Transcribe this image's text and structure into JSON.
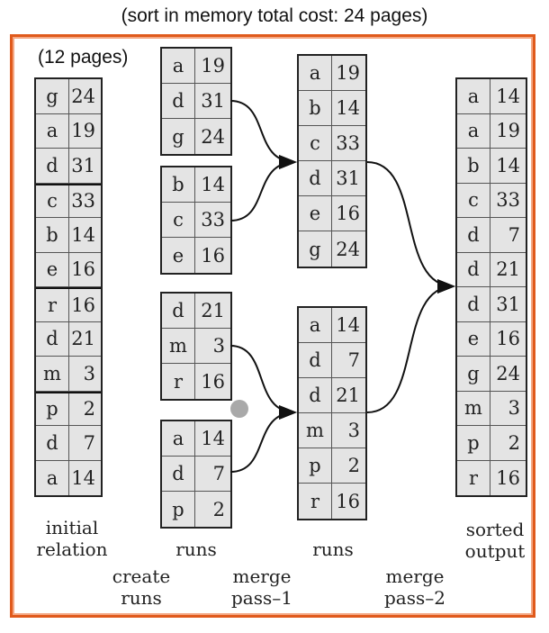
{
  "caption": "(sort in memory total cost: 24 pages)",
  "pages_note": "(12 pages)",
  "relation": [
    {
      "k": "g",
      "v": "24"
    },
    {
      "k": "a",
      "v": "19"
    },
    {
      "k": "d",
      "v": "31"
    },
    {
      "k": "c",
      "v": "33"
    },
    {
      "k": "b",
      "v": "14"
    },
    {
      "k": "e",
      "v": "16"
    },
    {
      "k": "r",
      "v": "16"
    },
    {
      "k": "d",
      "v": "21"
    },
    {
      "k": "m",
      "v": "3"
    },
    {
      "k": "p",
      "v": "2"
    },
    {
      "k": "d",
      "v": "7"
    },
    {
      "k": "a",
      "v": "14"
    }
  ],
  "runs1": [
    [
      {
        "k": "a",
        "v": "19"
      },
      {
        "k": "d",
        "v": "31"
      },
      {
        "k": "g",
        "v": "24"
      }
    ],
    [
      {
        "k": "b",
        "v": "14"
      },
      {
        "k": "c",
        "v": "33"
      },
      {
        "k": "e",
        "v": "16"
      }
    ],
    [
      {
        "k": "d",
        "v": "21"
      },
      {
        "k": "m",
        "v": "3"
      },
      {
        "k": "r",
        "v": "16"
      }
    ],
    [
      {
        "k": "a",
        "v": "14"
      },
      {
        "k": "d",
        "v": "7"
      },
      {
        "k": "p",
        "v": "2"
      }
    ]
  ],
  "runs2": [
    [
      {
        "k": "a",
        "v": "19"
      },
      {
        "k": "b",
        "v": "14"
      },
      {
        "k": "c",
        "v": "33"
      },
      {
        "k": "d",
        "v": "31"
      },
      {
        "k": "e",
        "v": "16"
      },
      {
        "k": "g",
        "v": "24"
      }
    ],
    [
      {
        "k": "a",
        "v": "14"
      },
      {
        "k": "d",
        "v": "7"
      },
      {
        "k": "d",
        "v": "21"
      },
      {
        "k": "m",
        "v": "3"
      },
      {
        "k": "p",
        "v": "2"
      },
      {
        "k": "r",
        "v": "16"
      }
    ]
  ],
  "output": [
    {
      "k": "a",
      "v": "14"
    },
    {
      "k": "a",
      "v": "19"
    },
    {
      "k": "b",
      "v": "14"
    },
    {
      "k": "c",
      "v": "33"
    },
    {
      "k": "d",
      "v": "7"
    },
    {
      "k": "d",
      "v": "21"
    },
    {
      "k": "d",
      "v": "31"
    },
    {
      "k": "e",
      "v": "16"
    },
    {
      "k": "g",
      "v": "24"
    },
    {
      "k": "m",
      "v": "3"
    },
    {
      "k": "p",
      "v": "2"
    },
    {
      "k": "r",
      "v": "16"
    }
  ],
  "labels": {
    "initial_relation": "initial\nrelation",
    "runs_1": "runs",
    "runs_2": "runs",
    "sorted_output": "sorted\noutput",
    "create_runs": "create\nruns",
    "merge_pass_1": "merge\npass–1",
    "merge_pass_2": "merge\npass–2"
  }
}
